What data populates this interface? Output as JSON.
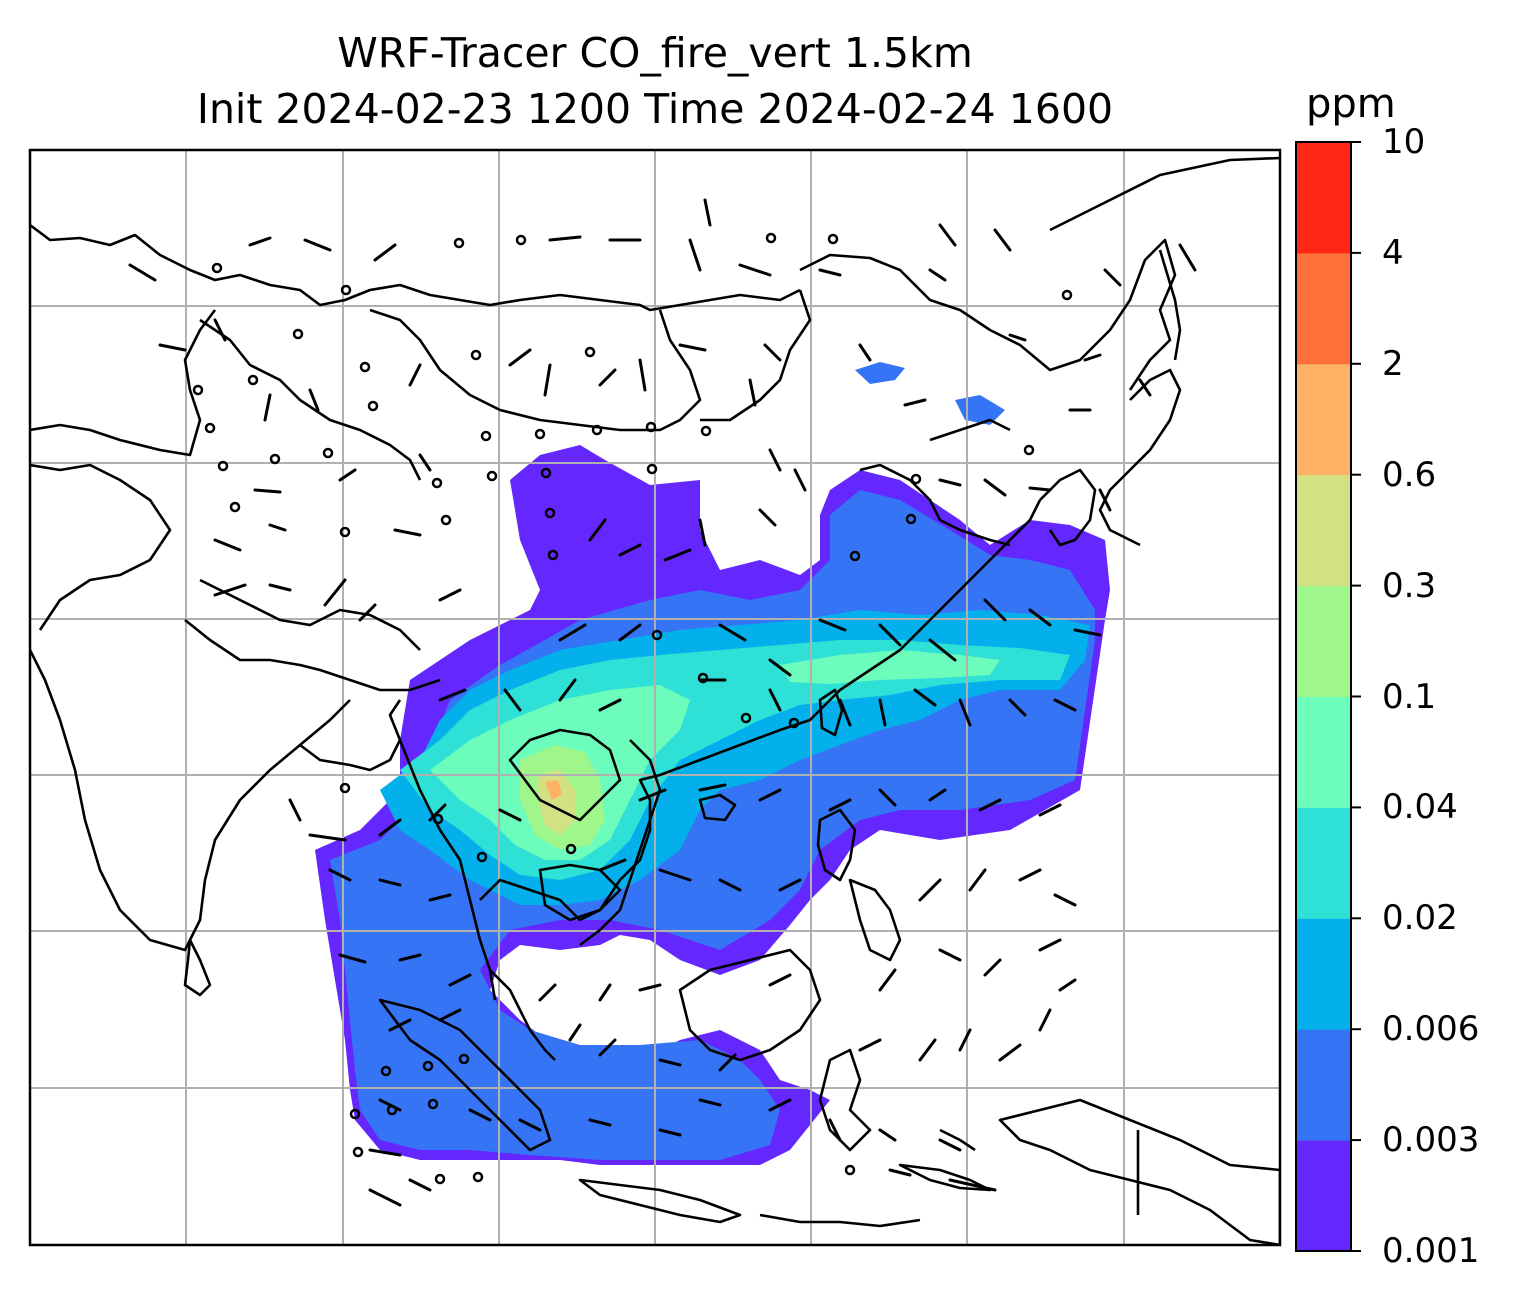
{
  "figure": {
    "title_line1": "WRF-Tracer CO_fire_vert 1.5km",
    "title_line2": "Init 2024-02-23 1200 Time 2024-02-24 1600"
  },
  "colorbar": {
    "units": "ppm",
    "levels": [
      "0.001",
      "0.003",
      "0.006",
      "0.02",
      "0.04",
      "0.1",
      "0.3",
      "0.6",
      "2",
      "4",
      "10"
    ],
    "colors": [
      "#6428ff",
      "#3575f5",
      "#03b0ec",
      "#2ee0d6",
      "#6cfcbc",
      "#9ff68b",
      "#d3e184",
      "#feb264",
      "#ff7138",
      "#ff2718"
    ]
  },
  "map": {
    "ocean_color": "#ffffff",
    "coastline_color": "#000000",
    "grid_color": "#b0b0b0",
    "barb_color": "#000000",
    "layer": "CO_fire_vert",
    "level": "1.5km",
    "units": "ppm",
    "gridlines": true
  }
}
